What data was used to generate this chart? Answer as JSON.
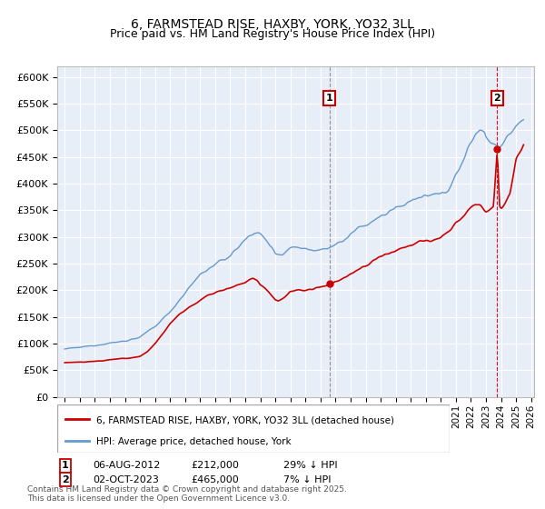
{
  "title": "6, FARMSTEAD RISE, HAXBY, YORK, YO32 3LL",
  "subtitle": "Price paid vs. HM Land Registry's House Price Index (HPI)",
  "legend_line1": "6, FARMSTEAD RISE, HAXBY, YORK, YO32 3LL (detached house)",
  "legend_line2": "HPI: Average price, detached house, York",
  "annotation1_label": "1",
  "annotation1_date": "06-AUG-2012",
  "annotation1_price": "£212,000",
  "annotation1_hpi": "29% ↓ HPI",
  "annotation2_label": "2",
  "annotation2_date": "02-OCT-2023",
  "annotation2_price": "£465,000",
  "annotation2_hpi": "7% ↓ HPI",
  "footer": "Contains HM Land Registry data © Crown copyright and database right 2025.\nThis data is licensed under the Open Government Licence v3.0.",
  "red_color": "#cc0000",
  "blue_color": "#6699cc",
  "background_color": "#e8eef8",
  "grid_color": "#ffffff",
  "ylim": [
    0,
    620000
  ],
  "yticks": [
    0,
    50000,
    100000,
    150000,
    200000,
    250000,
    300000,
    350000,
    400000,
    450000,
    500000,
    550000,
    600000
  ],
  "xlim_start": 1994.5,
  "xlim_end": 2026.2,
  "marker1_x": 2012.6,
  "marker1_y": 212000,
  "marker2_x": 2023.75,
  "marker2_y": 465000
}
